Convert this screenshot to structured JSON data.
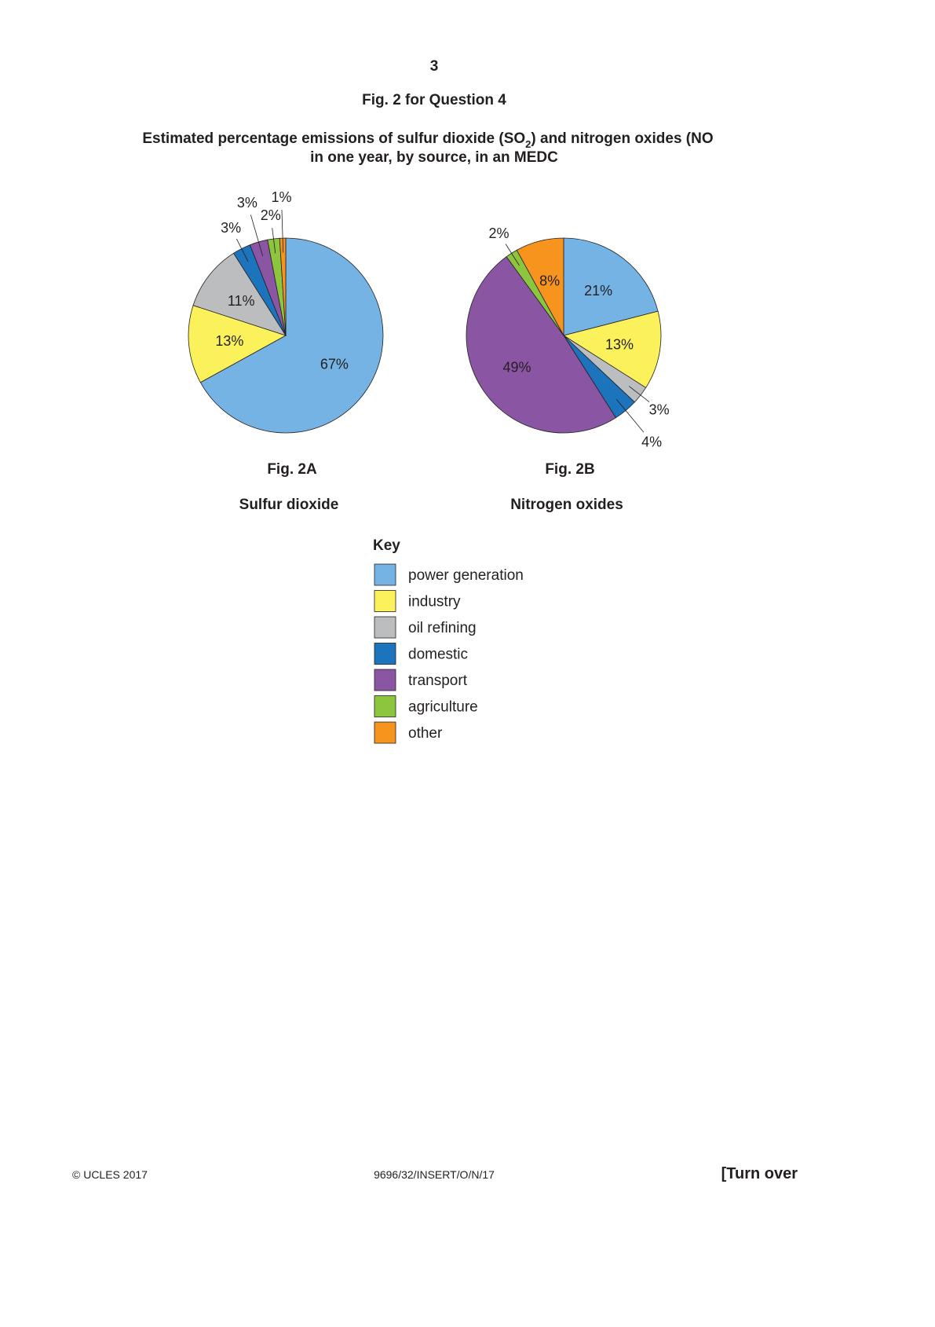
{
  "page_number": "3",
  "figure_heading": "Fig. 2 for Question 4",
  "title": {
    "line1": [
      "Estimated percentage emissions of sulfur dioxide (SO",
      "2",
      ") and nitrogen oxides (NO"
    ],
    "line2": "in one year, by source, in an MEDC"
  },
  "chart_data": [
    {
      "type": "pie",
      "label": "Fig. 2A",
      "subtitle": "Sulfur dioxide",
      "categories": [
        "power generation",
        "industry",
        "oil refining",
        "domestic",
        "transport",
        "agriculture",
        "other"
      ],
      "values": [
        67,
        13,
        11,
        3,
        3,
        2,
        1
      ],
      "value_labels": [
        "67%",
        "13%",
        "11%",
        "3%",
        "3%",
        "2%",
        "1%"
      ],
      "colors": [
        "#74b3e3",
        "#fbf15b",
        "#bcbdbf",
        "#1c75bc",
        "#8a55a3",
        "#8cc63f",
        "#f7941d"
      ]
    },
    {
      "type": "pie",
      "label": "Fig. 2B",
      "subtitle": "Nitrogen oxides",
      "categories": [
        "power generation",
        "industry",
        "oil refining",
        "domestic",
        "transport",
        "agriculture",
        "other"
      ],
      "values": [
        21,
        13,
        3,
        4,
        49,
        2,
        8
      ],
      "value_labels": [
        "21%",
        "13%",
        "3%",
        "4%",
        "49%",
        "2%",
        "8%"
      ],
      "colors": [
        "#74b3e3",
        "#fbf15b",
        "#bcbdbf",
        "#1c75bc",
        "#8a55a3",
        "#8cc63f",
        "#f7941d"
      ]
    }
  ],
  "key": {
    "title": "Key"
  },
  "footer": {
    "left": "© UCLES 2017",
    "center": "9696/32/INSERT/O/N/17",
    "right": "[Turn over"
  }
}
